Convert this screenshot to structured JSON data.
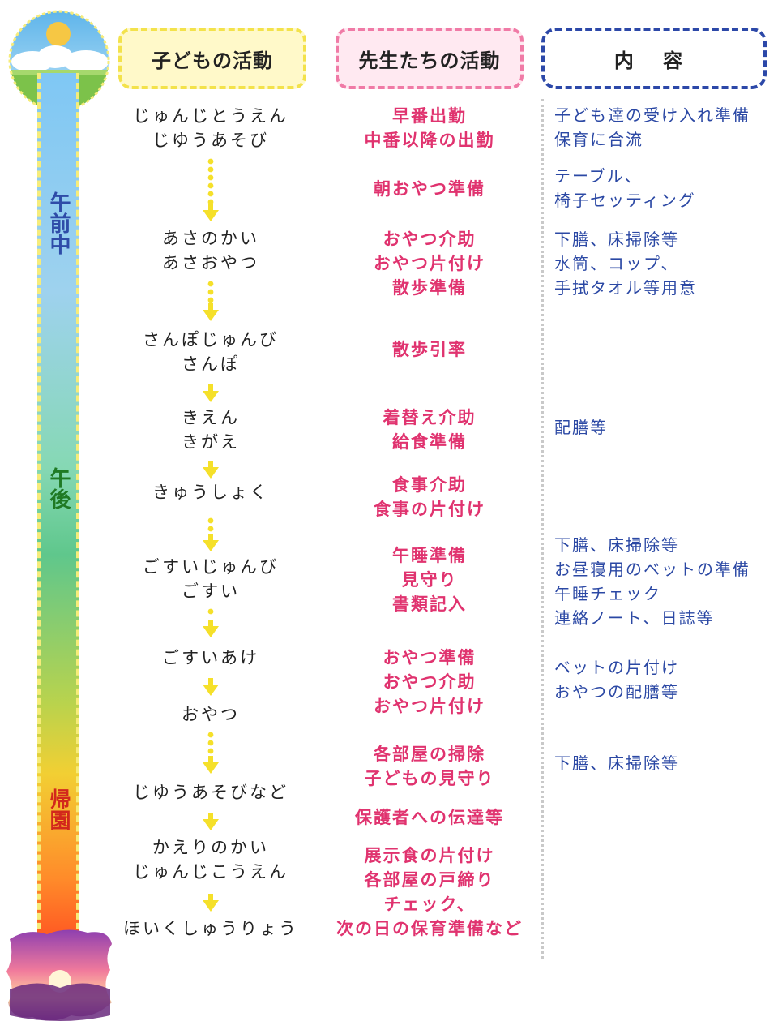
{
  "headers": {
    "children": "子どもの活動",
    "teachers": "先生たちの活動",
    "content": "内 容"
  },
  "timebar": {
    "labels": [
      "午前中",
      "午後",
      "帰園"
    ],
    "colors": {
      "am": "#2e4ca8",
      "pm": "#1f7a24",
      "return": "#d2281c"
    }
  },
  "children_activities": [
    [
      "じゅんじとうえん",
      "じゆうあそび"
    ],
    [
      "あさのかい",
      "あさおやつ"
    ],
    [
      "さんぽじゅんび",
      "さんぽ"
    ],
    [
      "きえん",
      "きがえ"
    ],
    [
      "きゅうしょく"
    ],
    [
      "ごすいじゅんび",
      "ごすい"
    ],
    [
      "ごすいあけ"
    ],
    [
      "おやつ"
    ],
    [
      "じゆうあそびなど"
    ],
    [
      "かえりのかい",
      "じゅんじこうえん"
    ],
    [
      "ほいくしゅうりょう"
    ]
  ],
  "teacher_activities": [
    [
      "早番出勤",
      "中番以降の出勤"
    ],
    [
      "朝おやつ準備"
    ],
    [
      "おやつ介助",
      "おやつ片付け",
      "散歩準備"
    ],
    [
      "散歩引率"
    ],
    [
      "着替え介助",
      "給食準備"
    ],
    [
      "食事介助",
      "食事の片付け"
    ],
    [
      "午睡準備",
      "見守り",
      "書類記入"
    ],
    [
      "おやつ準備",
      "おやつ介助",
      "おやつ片付け"
    ],
    [
      "各部屋の掃除",
      "子どもの見守り"
    ],
    [
      "保護者への伝達等"
    ],
    [
      "展示食の片付け",
      "各部屋の戸締り",
      "チェック、",
      "次の日の保育準備など"
    ]
  ],
  "contents": [
    [
      "子ども達の受け入れ準備",
      "保育に合流"
    ],
    [
      "テーブル、",
      "椅子セッティング"
    ],
    [
      "下膳、床掃除等",
      "水筒、コップ、",
      "手拭タオル等用意"
    ],
    [
      "配膳等"
    ],
    [
      "下膳、床掃除等",
      "お昼寝用のベットの準備",
      "午睡チェック",
      "連絡ノート、日誌等"
    ],
    [
      "ベットの片付け",
      "おやつの配膳等"
    ],
    [
      "下膳、床掃除等"
    ]
  ],
  "colors": {
    "child_text": "#222222",
    "teacher_text": "#e0336f",
    "content_text": "#2b48a4",
    "arrow": "#f5e02a"
  },
  "icons": [
    "sun-icon",
    "sunset-icon",
    "arrow-down-icon"
  ]
}
